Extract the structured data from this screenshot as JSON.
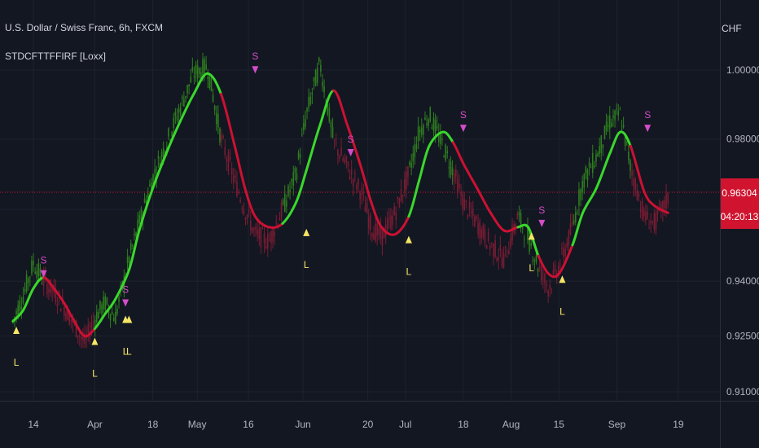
{
  "header": {
    "symbol": "U.S. Dollar / Swiss Franc, 6h, FXCM",
    "indicator": "STDCFTTFFIRF [Loxx]",
    "currency": "CHF"
  },
  "price_axis": {
    "ticks": [
      "1.00000",
      "0.98000",
      "0.96000",
      "0.94000",
      "0.92500",
      "0.91000"
    ],
    "last_price": "0.96304",
    "countdown": "04:20:13"
  },
  "time_axis": {
    "ticks": [
      "14",
      "Apr",
      "18",
      "May",
      "16",
      "Jun",
      "20",
      "Jul",
      "18",
      "Aug",
      "15",
      "Sep",
      "19"
    ]
  },
  "colors": {
    "background": "#131722",
    "bull_line": "#3ad82c",
    "bear_line": "#cc1133",
    "bull_candle": "#2e7d1f",
    "bear_candle": "#7a1c33",
    "long_signal": "#f5e663",
    "short_signal": "#d44dc8",
    "price_tag": "#d0142f"
  },
  "chart_data": {
    "type": "line",
    "title": "U.S. Dollar / Swiss Franc, 6h, FXCM",
    "ylabel": "CHF",
    "yscale": "log",
    "ylim": [
      0.906,
      1.01
    ],
    "grid": true,
    "x": [
      "Mar 08",
      "Mar 11",
      "Mar 14",
      "Mar 17",
      "Mar 20",
      "Mar 23",
      "Mar 26",
      "Mar 29",
      "Apr 01",
      "Apr 04",
      "Apr 07",
      "Apr 11",
      "Apr 14",
      "Apr 18",
      "Apr 22",
      "Apr 26",
      "Apr 30",
      "May 04",
      "May 08",
      "May 12",
      "May 15",
      "May 18",
      "May 22",
      "May 26",
      "May 30",
      "Jun 02",
      "Jun 06",
      "Jun 10",
      "Jun 14",
      "Jun 18",
      "Jun 21",
      "Jun 24",
      "Jun 28",
      "Jul 02",
      "Jul 05",
      "Jul 08",
      "Jul 12",
      "Jul 15",
      "Jul 18",
      "Jul 22",
      "Jul 26",
      "Jul 30",
      "Aug 03",
      "Aug 06",
      "Aug 09",
      "Aug 12",
      "Aug 15",
      "Aug 19",
      "Aug 22",
      "Aug 26",
      "Aug 30",
      "Sep 02",
      "Sep 05",
      "Sep 09",
      "Sep 12",
      "Sep 16"
    ],
    "series": [
      {
        "trend_line": [
          0.929,
          0.932,
          0.938,
          0.941,
          0.938,
          0.934,
          0.929,
          0.925,
          0.927,
          0.931,
          0.935,
          0.943,
          0.954,
          0.966,
          0.976,
          0.985,
          0.993,
          0.999,
          0.993,
          0.978,
          0.966,
          0.958,
          0.955,
          0.956,
          0.962,
          0.971,
          0.984,
          0.994,
          0.984,
          0.972,
          0.962,
          0.955,
          0.953,
          0.958,
          0.968,
          0.978,
          0.982,
          0.979,
          0.973,
          0.966,
          0.959,
          0.954,
          0.955,
          0.955,
          0.947,
          0.942,
          0.942,
          0.95,
          0.959,
          0.966,
          0.976,
          0.982,
          0.978,
          0.965,
          0.961,
          0.959
        ],
        "trend": [
          "up",
          "up",
          "up",
          "down",
          "down",
          "down",
          "down",
          "down",
          "up",
          "up",
          "up",
          "up",
          "up",
          "up",
          "up",
          "up",
          "up",
          "up",
          "down",
          "down",
          "down",
          "down",
          "down",
          "up",
          "up",
          "up",
          "up",
          "down",
          "down",
          "down",
          "down",
          "down",
          "down",
          "up",
          "up",
          "up",
          "up",
          "down",
          "down",
          "down",
          "down",
          "down",
          "up",
          "up",
          "down",
          "down",
          "down",
          "up",
          "up",
          "up",
          "up",
          "up",
          "down",
          "down",
          "down",
          "down"
        ]
      },
      {
        "price": [
          0.929,
          0.936,
          0.945,
          0.94,
          0.937,
          0.933,
          0.928,
          0.923,
          0.93,
          0.934,
          0.93,
          0.946,
          0.956,
          0.969,
          0.979,
          0.989,
          0.999,
          1.001,
          0.98,
          0.968,
          0.96,
          0.953,
          0.951,
          0.96,
          0.97,
          0.987,
          1.002,
          0.979,
          0.972,
          0.965,
          0.955,
          0.952,
          0.959,
          0.97,
          0.982,
          0.987,
          0.978,
          0.971,
          0.962,
          0.956,
          0.95,
          0.946,
          0.958,
          0.952,
          0.944,
          0.938,
          0.944,
          0.955,
          0.968,
          0.975,
          0.985,
          0.987,
          0.972,
          0.958,
          0.956,
          0.963
        ]
      }
    ],
    "signals": [
      {
        "label": "L",
        "type": "long",
        "date": "Mar 09",
        "price": 0.928
      },
      {
        "label": "S",
        "type": "short",
        "date": "Mar 17",
        "price": 0.941
      },
      {
        "label": "L",
        "type": "long",
        "date": "Apr 01",
        "price": 0.925
      },
      {
        "label": "S",
        "type": "short",
        "date": "Apr 10",
        "price": 0.933
      },
      {
        "label": "L",
        "type": "long",
        "date": "Apr 10",
        "price": 0.931
      },
      {
        "label": "L",
        "type": "long",
        "date": "Apr 11",
        "price": 0.931
      },
      {
        "label": "S",
        "type": "short",
        "date": "May 18",
        "price": 0.999
      },
      {
        "label": "L",
        "type": "long",
        "date": "Jun 02",
        "price": 0.955
      },
      {
        "label": "S",
        "type": "short",
        "date": "Jun 15",
        "price": 0.975
      },
      {
        "label": "L",
        "type": "long",
        "date": "Jul 02",
        "price": 0.953
      },
      {
        "label": "S",
        "type": "short",
        "date": "Jul 18",
        "price": 0.982
      },
      {
        "label": "L",
        "type": "long",
        "date": "Aug 07",
        "price": 0.954
      },
      {
        "label": "S",
        "type": "short",
        "date": "Aug 10",
        "price": 0.955
      },
      {
        "label": "L",
        "type": "long",
        "date": "Aug 16",
        "price": 0.942
      },
      {
        "label": "S",
        "type": "short",
        "date": "Sep 10",
        "price": 0.982
      }
    ]
  }
}
